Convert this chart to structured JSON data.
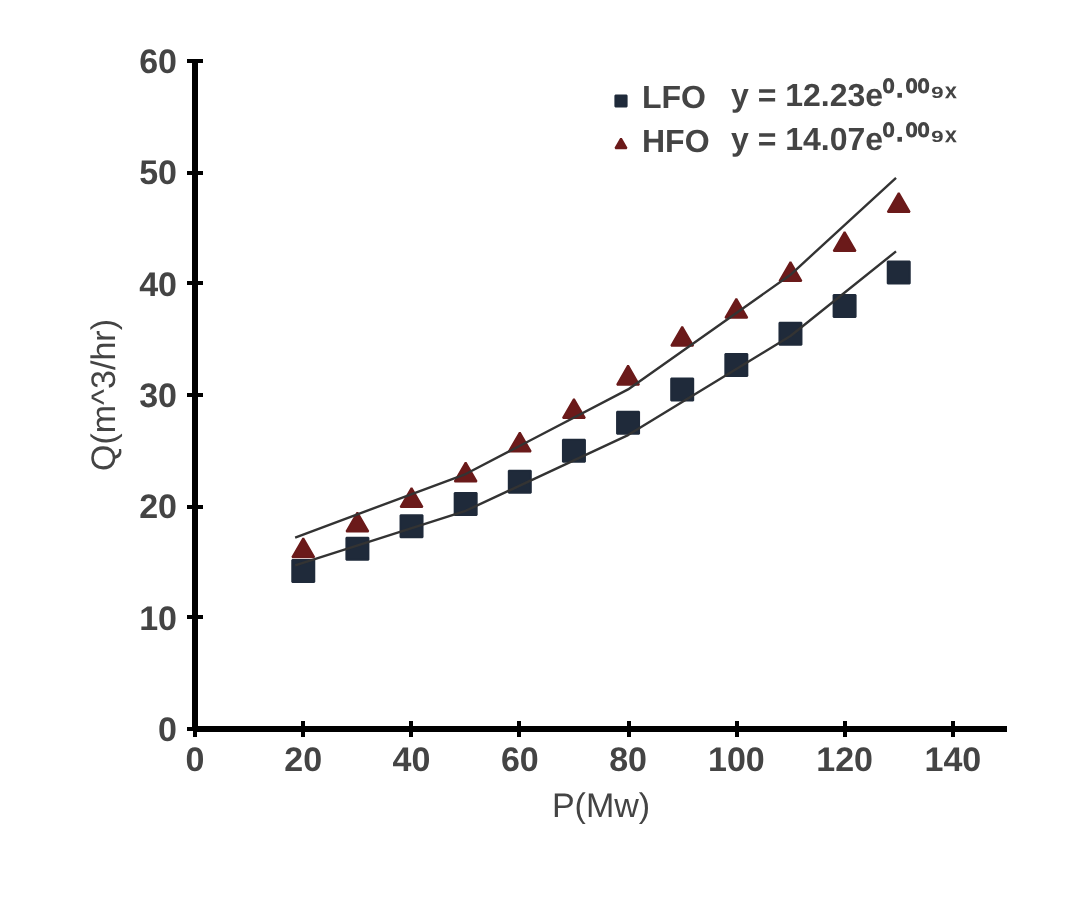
{
  "chart_data": {
    "type": "scatter",
    "xlabel": "P(Mw)",
    "ylabel": "Q(m^3/hr)",
    "xlim": [
      0,
      150
    ],
    "ylim": [
      0,
      60
    ],
    "xticks": [
      0,
      20,
      40,
      60,
      80,
      100,
      120,
      140
    ],
    "yticks": [
      0,
      10,
      20,
      30,
      40,
      50,
      60
    ],
    "grid": false,
    "legend": "top right",
    "series": [
      {
        "name": "LFO",
        "color": "#1f2a3a",
        "marker": "square",
        "x": [
          20,
          30,
          40,
          50,
          60,
          70,
          80,
          90,
          100,
          110,
          120,
          130
        ],
        "values": [
          14.2,
          16.2,
          18.2,
          20.2,
          22.2,
          25,
          27.5,
          30.5,
          32.7,
          35.5,
          38,
          41
        ]
      },
      {
        "name": "HFO",
        "color": "#6b1a1a",
        "marker": "triangle",
        "x": [
          20,
          30,
          40,
          50,
          60,
          70,
          80,
          90,
          100,
          110,
          120,
          130
        ],
        "values": [
          16,
          18.3,
          20.5,
          22.8,
          25.5,
          28.5,
          31.5,
          35,
          37.5,
          40.8,
          43.5,
          47
        ]
      },
      {
        "type": "line",
        "color": "#333333",
        "x": [
          18.5,
          50,
          80,
          110,
          129.5
        ],
        "values": [
          14.7,
          19.6,
          26.4,
          35.3,
          42.9
        ]
      },
      {
        "type": "line",
        "color": "#333333",
        "x": [
          18.5,
          50,
          80,
          110,
          129.5
        ],
        "values": [
          17.2,
          22.9,
          30.5,
          40.8,
          49.5
        ]
      }
    ],
    "annotations": [
      "y = 12.23e⁰·⁰⁰⁹ˣ",
      "y = 14.07e⁰·⁰⁰⁹ˣ"
    ]
  }
}
